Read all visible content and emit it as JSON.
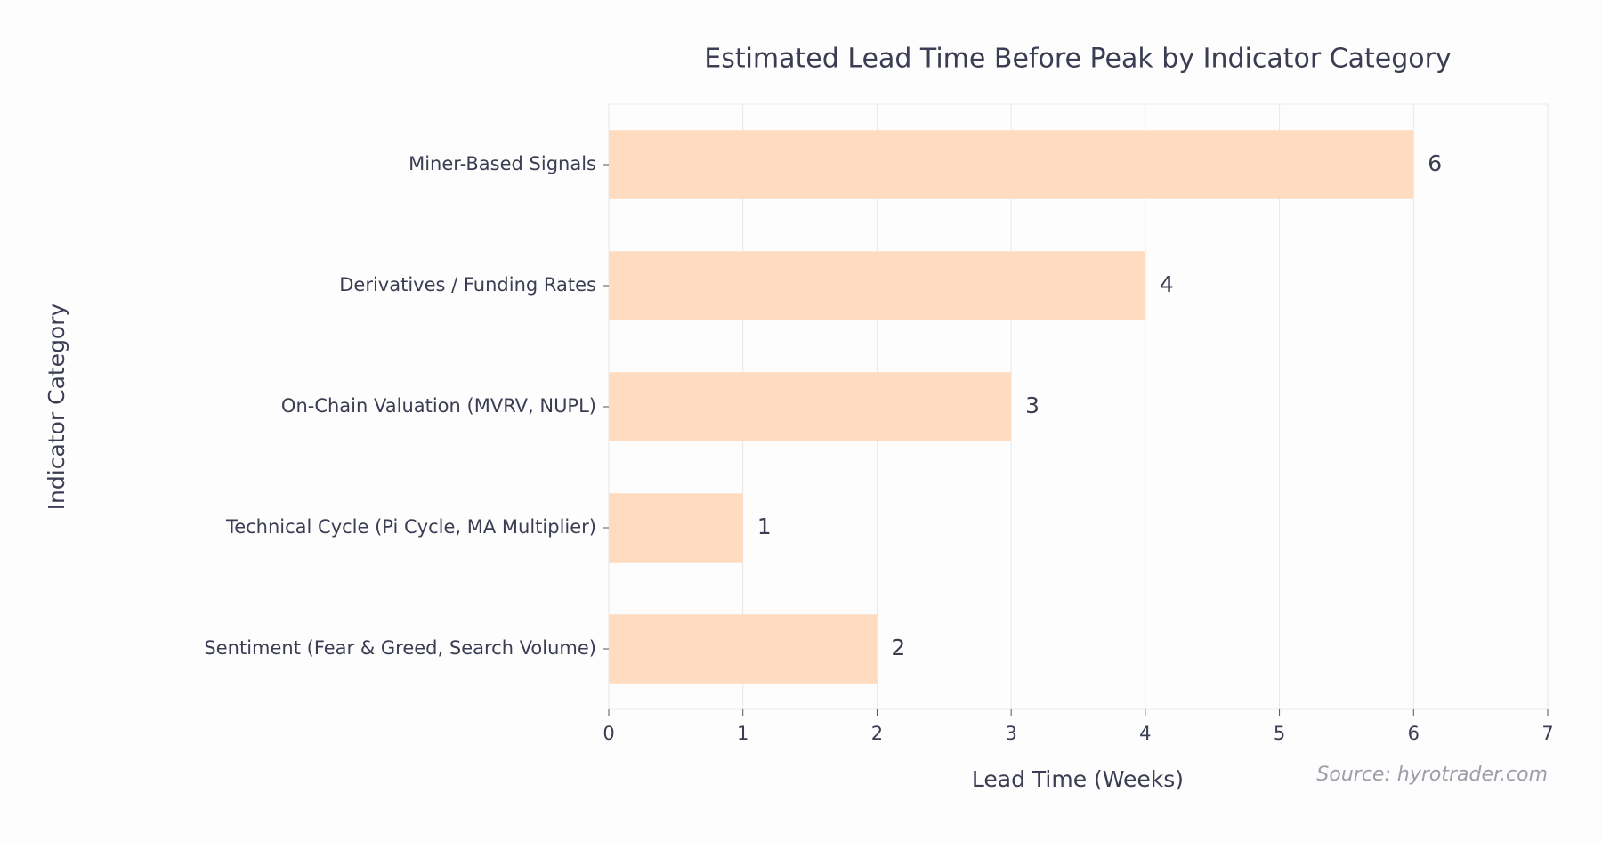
{
  "chart_data": {
    "type": "bar",
    "orientation": "horizontal",
    "title": "Estimated Lead Time Before Peak by Indicator Category",
    "x_label": "Lead Time (Weeks)",
    "y_label": "Indicator Category",
    "source": "Source: hyrotrader.com",
    "categories": [
      "Miner-Based Signals",
      "Derivatives / Funding Rates",
      "On-Chain Valuation (MVRV, NUPL)",
      "Technical Cycle (Pi Cycle, MA Multiplier)",
      "Sentiment (Fear & Greed, Search Volume)"
    ],
    "values": [
      6,
      4,
      3,
      1,
      2
    ],
    "color": "#ffdbc0",
    "xlim": [
      0,
      7
    ],
    "xticks": [
      0,
      1,
      2,
      3,
      4,
      5,
      6,
      7
    ],
    "grid": true
  }
}
